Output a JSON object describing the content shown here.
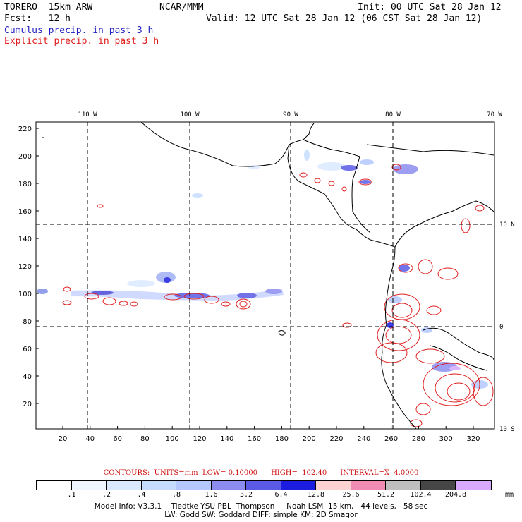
{
  "header": {
    "model": "TORERO  15km ARW",
    "org": "NCAR/MMM",
    "init": "Init: 00 UTC Sat 28 Jan 12",
    "fcst": "Fcst:   12 h",
    "valid": "Valid: 12 UTC Sat 28 Jan 12 (06 CST Sat 28 Jan 12)",
    "legend_cumulus": "Cumulus precip. in past 3 h",
    "legend_explicit": "Explicit precip. in past 3 h"
  },
  "map": {
    "top_lon_labels": [
      "110 W",
      "100 W",
      "90 W",
      "80 W",
      "70 W"
    ],
    "right_lat_labels": [
      "10 N",
      "0",
      "10 S"
    ],
    "y_ticks": [
      "220",
      "200",
      "180",
      "160",
      "140",
      "120",
      "100",
      "80",
      "60",
      "40",
      "20"
    ],
    "x_ticks": [
      "20",
      "40",
      "60",
      "80",
      "100",
      "120",
      "140",
      "160",
      "180",
      "200",
      "220",
      "240",
      "260",
      "280",
      "300",
      "320"
    ],
    "colors": {
      "cumulus": "#3030d0",
      "explicit": "#e02020",
      "coast": "#000000"
    }
  },
  "contours_text": "CONTOURS:  UNITS=mm  LOW= 0.10000      HIGH=  102.40      INTERVAL=X  4.0000",
  "colorbar": {
    "colors": [
      "#ffffff",
      "#f0f6ff",
      "#dbe9ff",
      "#c6dcff",
      "#b4c8ff",
      "#8c8cf0",
      "#5a5ae6",
      "#1c1ce0",
      "#ffd2d2",
      "#f08cb4",
      "#bebebe",
      "#464646",
      "#d7aaff"
    ],
    "labels": [
      ".1",
      ".2",
      ".4",
      ".8",
      "1.6",
      "3.2",
      "6.4",
      "12.8",
      "25.6",
      "51.2",
      "102.4",
      "204.8"
    ],
    "units": "mm"
  },
  "footer": {
    "line1": "Model Info: V3.3.1    Tiedtke YSU PBL  Thompson     Noah LSM  15 km,   44 levels,   58 sec",
    "line2": "LW: Godd SW: Goddard DIFF: simple KM: 2D Smagor"
  }
}
